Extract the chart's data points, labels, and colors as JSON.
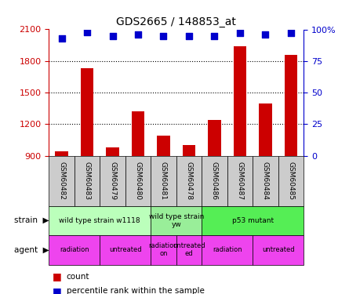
{
  "title": "GDS2665 / 148853_at",
  "samples": [
    "GSM60482",
    "GSM60483",
    "GSM60479",
    "GSM60480",
    "GSM60481",
    "GSM60478",
    "GSM60486",
    "GSM60487",
    "GSM60484",
    "GSM60485"
  ],
  "counts": [
    940,
    1730,
    980,
    1320,
    1090,
    1000,
    1240,
    1940,
    1400,
    1860
  ],
  "percentiles": [
    93,
    98,
    95,
    96,
    95,
    95,
    95,
    97,
    96,
    97
  ],
  "ylim_left": [
    900,
    2100
  ],
  "ylim_right": [
    0,
    100
  ],
  "yticks_left": [
    900,
    1200,
    1500,
    1800,
    2100
  ],
  "yticks_right": [
    0,
    25,
    50,
    75,
    100
  ],
  "bar_color": "#cc0000",
  "dot_color": "#0000cc",
  "strain_groups": [
    {
      "label": "wild type strain w1118",
      "start": 0,
      "end": 4,
      "color": "#bbffbb"
    },
    {
      "label": "wild type strain\nyw",
      "start": 4,
      "end": 6,
      "color": "#99ee99"
    },
    {
      "label": "p53 mutant",
      "start": 6,
      "end": 10,
      "color": "#55ee55"
    }
  ],
  "agent_groups": [
    {
      "label": "radiation",
      "start": 0,
      "end": 2
    },
    {
      "label": "untreated",
      "start": 2,
      "end": 4
    },
    {
      "label": "radiation\non",
      "start": 4,
      "end": 5
    },
    {
      "label": "untreated\ned",
      "start": 5,
      "end": 6
    },
    {
      "label": "radiation",
      "start": 6,
      "end": 8
    },
    {
      "label": "untreated",
      "start": 8,
      "end": 10
    }
  ],
  "agent_color": "#ee44ee",
  "sample_box_color": "#cccccc",
  "legend_count_color": "#cc0000",
  "legend_pct_color": "#0000cc",
  "bg_color": "#ffffff",
  "tick_label_color_left": "#cc0000",
  "tick_label_color_right": "#0000cc",
  "bar_width": 0.5,
  "dot_size": 40,
  "dot_marker": "s",
  "grid_yticks": [
    1200,
    1500,
    1800
  ]
}
